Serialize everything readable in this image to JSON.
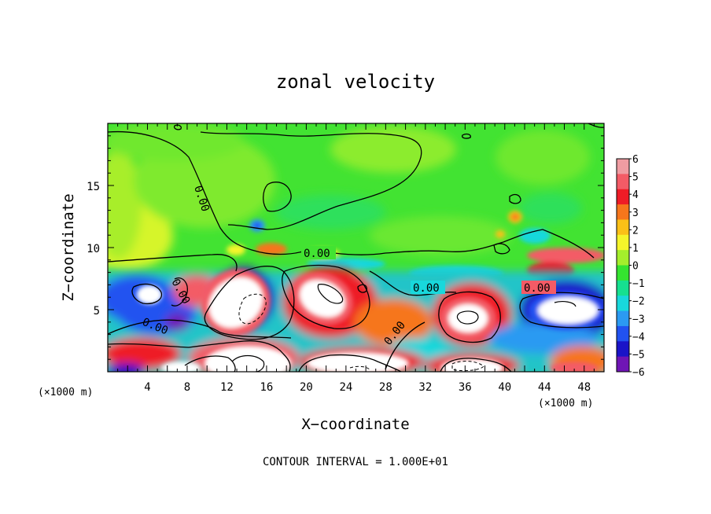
{
  "chart_data": {
    "type": "heatmap",
    "title": "zonal velocity",
    "xlabel": "X−coordinate",
    "ylabel": "Z−coordinate",
    "x_unit_label_left": "(×1000 m)",
    "x_unit_label_right": "(×1000 m)",
    "footer": "CONTOUR INTERVAL = 1.000E+01",
    "xlim": [
      0,
      50
    ],
    "ylim": [
      0,
      20
    ],
    "x_ticks": [
      4,
      8,
      12,
      16,
      20,
      24,
      28,
      32,
      36,
      40,
      44,
      48
    ],
    "y_ticks": [
      5,
      10,
      15
    ],
    "colorbar": {
      "ticks": [
        6,
        5,
        4,
        3,
        2,
        1,
        0,
        -1,
        -2,
        -3,
        -4,
        -5,
        -6
      ],
      "colors": [
        "#ef9ca2",
        "#f35b66",
        "#ee1c26",
        "#f6761c",
        "#fbc017",
        "#f5f52a",
        "#a4ee2c",
        "#35e430",
        "#16e090",
        "#18d8dc",
        "#2b9af2",
        "#2152f0",
        "#1a14c8",
        "#6f15b5"
      ]
    },
    "contour_labels": [
      "0.00",
      "0.00",
      "0.00",
      "0.00",
      "0.00",
      "0.00",
      "0.00"
    ],
    "grid": false
  }
}
